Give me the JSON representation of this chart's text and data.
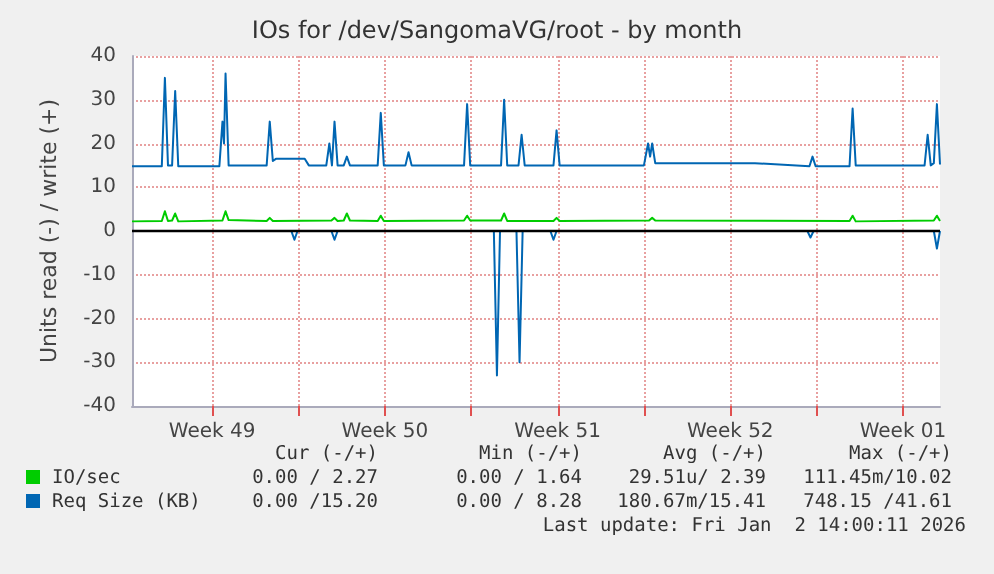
{
  "chart_data": {
    "type": "line",
    "title": "IOs for /dev/SangomaVG/root - by month",
    "ylabel": "Units read (-) / write (+)",
    "xlim": [
      "2025-12-01T06:00",
      "2026-01-03T00:00"
    ],
    "xticks": [
      {
        "value": "2025-12-04T12:00",
        "label": "Week 49"
      },
      {
        "value": "2025-12-08T00:00",
        "label": null
      },
      {
        "value": "2025-12-11T12:00",
        "label": "Week 50"
      },
      {
        "value": "2025-12-15T00:00",
        "label": null
      },
      {
        "value": "2025-12-18T12:00",
        "label": "Week 51"
      },
      {
        "value": "2025-12-22T00:00",
        "label": null
      },
      {
        "value": "2025-12-25T12:00",
        "label": "Week 52"
      },
      {
        "value": "2025-12-29T00:00",
        "label": null
      },
      {
        "value": "2026-01-01T12:00",
        "label": "Week 01"
      }
    ],
    "ylim": [
      -40,
      40
    ],
    "yticks": [
      -40,
      -30,
      -20,
      -10,
      0,
      10,
      20,
      30,
      40
    ],
    "grid": true,
    "legend": "bottom",
    "marker": "none",
    "line_style": "solid",
    "ref_lines": [
      {
        "axis": "y",
        "value": 0,
        "color": "#000000"
      }
    ],
    "series": [
      {
        "name": "IO/sec",
        "color": "#00cc00",
        "x": [
          "2025-12-01T06:00",
          "2025-12-02T11:00",
          "2025-12-02T14:00",
          "2025-12-02T17:00",
          "2025-12-02T21:00",
          "2025-12-03T00:00",
          "2025-12-03T03:00",
          "2025-12-04T22:00",
          "2025-12-05T01:00",
          "2025-12-05T04:00",
          "2025-12-06T17:00",
          "2025-12-06T20:00",
          "2025-12-06T23:00",
          "2025-12-09T08:00",
          "2025-12-09T11:00",
          "2025-12-09T14:00",
          "2025-12-09T20:00",
          "2025-12-09T23:00",
          "2025-12-10T02:00",
          "2025-12-11T05:00",
          "2025-12-11T08:00",
          "2025-12-11T11:00",
          "2025-12-14T17:00",
          "2025-12-14T20:00",
          "2025-12-14T23:00",
          "2025-12-16T05:00",
          "2025-12-16T08:00",
          "2025-12-16T11:00",
          "2025-12-18T08:00",
          "2025-12-18T11:00",
          "2025-12-18T14:00",
          "2025-12-22T05:00",
          "2025-12-22T08:00",
          "2025-12-22T11:00",
          "2025-12-30T08:00",
          "2025-12-30T11:00",
          "2025-12-30T14:00",
          "2026-01-02T18:00",
          "2026-01-02T21:00",
          "2026-01-03T00:00"
        ],
        "values": [
          2.2,
          2.3,
          4.5,
          2.3,
          2.4,
          4,
          2.2,
          2.4,
          4.5,
          2.5,
          2.3,
          3,
          2.3,
          2.4,
          3,
          2.3,
          2.4,
          4,
          2.4,
          2.3,
          3.5,
          2.3,
          2.4,
          3.5,
          2.4,
          2.4,
          4,
          2.3,
          2.3,
          3,
          2.3,
          2.4,
          3,
          2.4,
          2.3,
          3.5,
          2.2,
          2.4,
          3.5,
          2.3
        ]
      },
      {
        "name": "Req Size (KB)",
        "color": "#0066b3",
        "x": [
          "2025-12-01T06:00",
          "2025-12-02T11:00",
          "2025-12-02T14:00",
          "2025-12-02T17:00",
          "2025-12-02T21:00",
          "2025-12-03T00:00",
          "2025-12-03T03:00",
          "2025-12-04T19:00",
          "2025-12-04T22:00",
          "2025-12-04T23:30",
          "2025-12-05T01:00",
          "2025-12-05T04:00",
          "2025-12-06T17:00",
          "2025-12-06T20:00",
          "2025-12-06T23:00",
          "2025-12-07T02:00",
          "2025-12-08T06:00",
          "2025-12-08T10:00",
          "2025-12-09T03:00",
          "2025-12-09T06:00",
          "2025-12-09T08:30",
          "2025-12-09T11:00",
          "2025-12-09T14:00",
          "2025-12-09T20:00",
          "2025-12-09T23:00",
          "2025-12-10T02:00",
          "2025-12-11T05:00",
          "2025-12-11T08:00",
          "2025-12-11T11:00",
          "2025-12-12T08:00",
          "2025-12-12T11:00",
          "2025-12-12T14:00",
          "2025-12-14T17:00",
          "2025-12-14T20:00",
          "2025-12-14T23:00",
          "2025-12-16T05:00",
          "2025-12-16T08:00",
          "2025-12-16T11:00",
          "2025-12-16T22:00",
          "2025-12-17T01:00",
          "2025-12-17T04:00",
          "2025-12-18T08:00",
          "2025-12-18T11:00",
          "2025-12-18T14:00",
          "2025-12-22T00:00",
          "2025-12-22T04:00",
          "2025-12-22T06:00",
          "2025-12-22T08:00",
          "2025-12-22T11:00",
          "2025-12-26T12:00",
          "2025-12-28T17:00",
          "2025-12-28T20:00",
          "2025-12-28T23:00",
          "2025-12-30T08:00",
          "2025-12-30T11:00",
          "2025-12-30T14:00",
          "2026-01-02T09:00",
          "2026-01-02T12:00",
          "2026-01-02T15:00",
          "2026-01-02T18:00",
          "2026-01-02T21:00",
          "2026-01-03T00:00"
        ],
        "values": [
          14.8,
          14.8,
          35,
          15,
          15,
          32,
          14.8,
          14.8,
          25,
          20,
          36,
          15,
          15,
          25,
          16,
          16.5,
          16.5,
          15,
          15,
          20,
          15,
          25,
          15,
          15,
          17,
          15,
          15,
          27,
          15,
          15,
          18,
          15,
          15,
          29,
          15,
          15,
          30,
          15,
          15,
          22,
          15,
          15,
          23,
          15,
          15,
          20,
          17,
          20,
          15.5,
          15.5,
          14.8,
          17,
          14.8,
          14.8,
          28,
          15,
          15,
          22,
          15,
          15.5,
          29,
          15.2
        ]
      },
      {
        "color": "#0066b3",
        "x": [
          "2025-12-01T06:00",
          "2025-12-07T17:00",
          "2025-12-07T20:00",
          "2025-12-07T23:00",
          "2025-12-09T08:00",
          "2025-12-09T11:00",
          "2025-12-09T14:00",
          "2025-12-15T22:00",
          "2025-12-16T01:00",
          "2025-12-16T04:00",
          "2025-12-16T20:00",
          "2025-12-16T23:00",
          "2025-12-17T02:00",
          "2025-12-18T05:00",
          "2025-12-18T08:00",
          "2025-12-18T11:00",
          "2025-12-28T15:00",
          "2025-12-28T18:00",
          "2025-12-28T21:00",
          "2026-01-02T18:00",
          "2026-01-02T21:00",
          "2026-01-03T00:00"
        ],
        "values": [
          0,
          0,
          -2,
          0,
          0,
          -2,
          0,
          0,
          -33,
          0,
          0,
          -30,
          0,
          0,
          -2,
          0,
          0,
          -1.5,
          0,
          0,
          -4,
          0
        ]
      }
    ],
    "annotations": [
      "Cur (-/+)",
      "Min (-/+)",
      "Avg (-/+)",
      "Max (-/+)",
      "0.00 / 2.27",
      "0.00 / 1.64",
      "29.51u/ 2.39",
      "111.45m/10.02",
      "0.00 /15.20",
      "0.00 / 8.28",
      "180.67m/15.41",
      "748.15 /41.61",
      "Last update: Fri Jan  2 14:00:11 2026"
    ]
  }
}
